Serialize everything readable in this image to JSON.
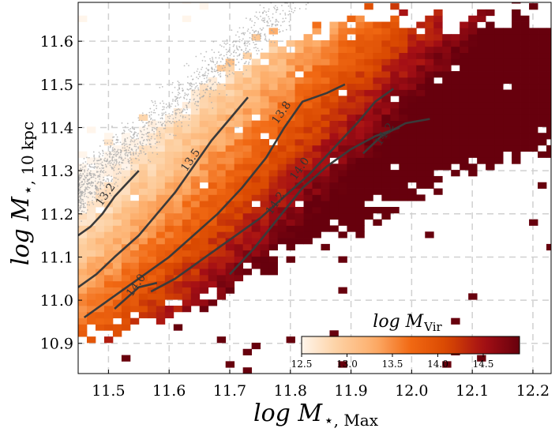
{
  "chart_data": {
    "type": "heatmap",
    "title": "",
    "xlabel": "log M⋆, Max",
    "ylabel": "log M⋆, 10 kpc",
    "xlabel_parts": {
      "main": "log M",
      "sub": "⋆, Max"
    },
    "ylabel_parts": {
      "main": "log M",
      "sub": "⋆, 10 kpc"
    },
    "xlim": [
      11.45,
      12.23
    ],
    "ylim": [
      10.83,
      11.69
    ],
    "x_ticks": [
      11.5,
      11.6,
      11.7,
      11.8,
      11.9,
      12.0,
      12.1,
      12.2
    ],
    "x_tick_labels": [
      "11.5",
      "11.6",
      "11.7",
      "11.8",
      "11.9",
      "12.0",
      "12.1",
      "12.2"
    ],
    "y_ticks": [
      10.9,
      11.0,
      11.1,
      11.2,
      11.3,
      11.4,
      11.5,
      11.6
    ],
    "y_tick_labels": [
      "10.9",
      "11.0",
      "11.1",
      "11.2",
      "11.3",
      "11.4",
      "11.5",
      "11.6"
    ],
    "grid": true,
    "bin_size": 0.0143,
    "colorbar": {
      "title_main": "log M",
      "title_sub": "Vir",
      "range": [
        12.5,
        14.9
      ],
      "ticks": [
        12.5,
        13.0,
        13.5,
        14.0,
        14.5
      ],
      "tick_labels": [
        "12.5",
        "13.0",
        "13.5",
        "14.0",
        "14.5"
      ],
      "colormap": [
        "#fff5eb",
        "#fdd0a2",
        "#fdae6b",
        "#f16913",
        "#d94801",
        "#a50f15",
        "#67000d"
      ],
      "placement": "lower-right"
    },
    "field_model": {
      "const": 13.1,
      "slope_x": 6.0,
      "slope_y": -4.0,
      "x0": 11.6,
      "y0": 11.3
    },
    "upper_edge": [
      [
        11.45,
        11.33
      ],
      [
        11.55,
        11.4
      ],
      [
        11.65,
        11.5
      ],
      [
        11.75,
        11.59
      ],
      [
        11.85,
        11.64
      ],
      [
        11.95,
        11.66
      ],
      [
        12.05,
        11.67
      ],
      [
        12.15,
        11.68
      ],
      [
        12.23,
        11.68
      ]
    ],
    "lower_edge": [
      [
        11.45,
        10.9
      ],
      [
        11.55,
        10.93
      ],
      [
        11.65,
        10.97
      ],
      [
        11.75,
        11.06
      ],
      [
        11.85,
        11.13
      ],
      [
        11.95,
        11.2
      ],
      [
        12.05,
        11.25
      ],
      [
        12.15,
        11.3
      ],
      [
        12.23,
        11.32
      ]
    ],
    "scatter_band": {
      "center_at_x0": 11.25,
      "x0": 11.45,
      "slope": 1.25,
      "width": 0.09,
      "x_range": [
        11.45,
        11.86
      ],
      "count": 1400,
      "color": "#aaaaaa"
    },
    "contours": [
      {
        "level": "13.2",
        "label_at": [
          11.5,
          11.24
        ],
        "points": [
          [
            11.45,
            11.15
          ],
          [
            11.47,
            11.17
          ],
          [
            11.49,
            11.2
          ],
          [
            11.51,
            11.24
          ],
          [
            11.53,
            11.27
          ],
          [
            11.55,
            11.3
          ]
        ]
      },
      {
        "level": "13.5",
        "label_at": [
          11.64,
          11.32
        ],
        "points": [
          [
            11.45,
            11.03
          ],
          [
            11.48,
            11.06
          ],
          [
            11.51,
            11.1
          ],
          [
            11.55,
            11.15
          ],
          [
            11.58,
            11.2
          ],
          [
            11.61,
            11.25
          ],
          [
            11.64,
            11.31
          ],
          [
            11.67,
            11.37
          ],
          [
            11.7,
            11.42
          ],
          [
            11.73,
            11.47
          ]
        ]
      },
      {
        "level": "13.8",
        "label_at": [
          11.79,
          11.43
        ],
        "points": [
          [
            11.46,
            10.96
          ],
          [
            11.5,
            11.0
          ],
          [
            11.55,
            11.05
          ],
          [
            11.6,
            11.1
          ],
          [
            11.64,
            11.15
          ],
          [
            11.68,
            11.2
          ],
          [
            11.72,
            11.26
          ],
          [
            11.76,
            11.33
          ],
          [
            11.79,
            11.4
          ],
          [
            11.82,
            11.46
          ],
          [
            11.86,
            11.48
          ],
          [
            11.89,
            11.5
          ]
        ]
      },
      {
        "level": "14.0",
        "label_at": [
          11.82,
          11.3
        ],
        "points": [
          [
            11.57,
            11.02
          ],
          [
            11.61,
            11.05
          ],
          [
            11.65,
            11.09
          ],
          [
            11.7,
            11.14
          ],
          [
            11.75,
            11.19
          ],
          [
            11.79,
            11.24
          ],
          [
            11.83,
            11.29
          ],
          [
            11.87,
            11.35
          ],
          [
            11.91,
            11.41
          ],
          [
            11.94,
            11.46
          ],
          [
            11.97,
            11.49
          ]
        ]
      },
      {
        "level": "14.0",
        "label_at": [
          11.55,
          11.03
        ],
        "points": [
          [
            11.51,
            10.98
          ],
          [
            11.55,
            11.03
          ],
          [
            11.58,
            11.04
          ]
        ]
      },
      {
        "level": "14.2",
        "label_at": [
          11.78,
          11.22
        ],
        "points": [
          [
            11.7,
            11.06
          ],
          [
            11.74,
            11.12
          ],
          [
            11.78,
            11.19
          ],
          [
            11.82,
            11.26
          ],
          [
            11.86,
            11.31
          ],
          [
            11.9,
            11.35
          ],
          [
            11.94,
            11.38
          ],
          [
            11.98,
            11.4
          ]
        ]
      },
      {
        "level": "14.2",
        "label_at": [
          11.96,
          11.38
        ],
        "points": [
          [
            11.92,
            11.34
          ],
          [
            11.95,
            11.38
          ],
          [
            11.99,
            11.41
          ],
          [
            12.03,
            11.42
          ]
        ]
      }
    ]
  }
}
